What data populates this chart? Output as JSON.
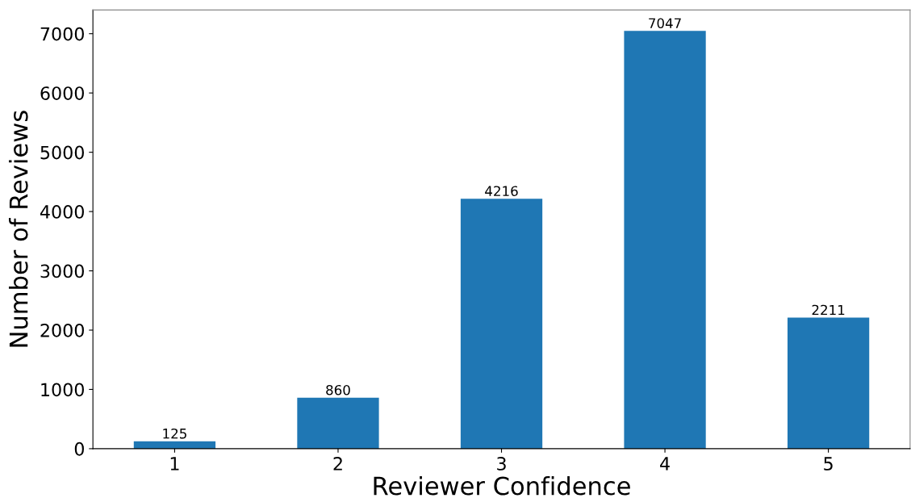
{
  "chart_data": {
    "type": "bar",
    "xlabel": "Reviewer Confidence",
    "ylabel": "Number of Reviews",
    "categories": [
      "1",
      "2",
      "3",
      "4",
      "5"
    ],
    "values": [
      125,
      860,
      4216,
      7047,
      2211
    ],
    "color": "#1f77b4",
    "ylim": [
      0,
      7400
    ],
    "yticks": [
      0,
      1000,
      2000,
      3000,
      4000,
      5000,
      6000,
      7000
    ],
    "data_labels": true,
    "grid": false
  }
}
